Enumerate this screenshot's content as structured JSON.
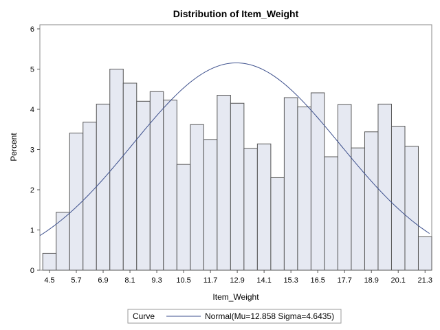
{
  "chart_data": {
    "type": "bar",
    "title": "Distribution of Item_Weight",
    "xlabel": "Item_Weight",
    "ylabel": "Percent",
    "bin_width": 0.6,
    "bins": [
      4.2,
      4.8,
      5.4,
      6.0,
      6.6,
      7.2,
      7.8,
      8.4,
      9.0,
      9.6,
      10.2,
      10.8,
      11.4,
      12.0,
      12.6,
      13.2,
      13.8,
      14.4,
      15.0,
      15.6,
      16.2,
      16.8,
      17.4,
      18.0,
      18.6,
      19.2,
      19.8,
      20.4,
      21.0
    ],
    "values": [
      0.42,
      1.44,
      3.41,
      3.68,
      4.13,
      5.0,
      4.65,
      4.2,
      4.44,
      4.23,
      2.63,
      3.62,
      3.25,
      4.35,
      4.15,
      3.03,
      3.14,
      2.3,
      4.29,
      4.06,
      4.41,
      2.82,
      4.12,
      3.04,
      3.44,
      4.13,
      3.58,
      3.08,
      0.83
    ],
    "xticks": [
      "4.5",
      "5.7",
      "6.9",
      "8.1",
      "9.3",
      "10.5",
      "11.7",
      "12.9",
      "14.1",
      "15.3",
      "16.5",
      "17.7",
      "18.9",
      "20.1",
      "21.3"
    ],
    "yticks": [
      "0",
      "1",
      "2",
      "3",
      "4",
      "5",
      "6"
    ],
    "ylim": [
      0,
      6
    ],
    "xlim": [
      4.07,
      21.6
    ],
    "normal_curve": {
      "mu": 12.858,
      "sigma": 4.6435
    },
    "legend": {
      "title": "Curve",
      "entry": "Normal(Mu=12.858 Sigma=4.6435)",
      "position": "bottom"
    },
    "colors": {
      "bar_fill": "#e6e9f2",
      "bar_stroke": "#555555",
      "curve": "#3c4f8c"
    }
  }
}
